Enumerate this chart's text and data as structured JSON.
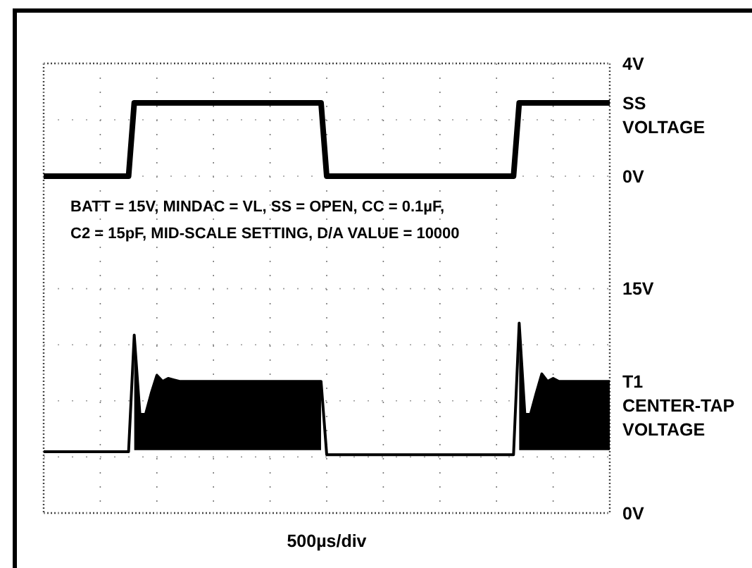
{
  "chart_data": [
    {
      "type": "line",
      "categories": [
        null,
        null,
        null,
        null,
        null,
        null,
        null,
        null,
        null,
        null,
        null,
        null,
        null,
        null,
        null,
        null,
        null,
        null,
        null,
        null,
        null,
        null,
        null,
        null,
        null,
        null,
        null,
        null,
        null,
        null,
        null,
        null,
        null,
        null,
        null,
        null,
        null,
        null,
        null,
        null,
        null,
        null,
        null,
        null,
        null,
        null,
        null,
        null,
        null,
        null,
        null,
        null,
        null,
        null,
        null,
        null,
        null,
        null,
        null,
        null,
        null,
        null,
        null,
        null,
        null,
        null,
        null,
        null,
        null,
        null,
        null,
        null,
        null,
        null,
        null,
        null,
        null,
        null,
        null,
        null,
        null,
        null,
        null,
        null,
        null,
        null,
        null,
        null,
        null,
        null,
        null,
        null,
        null,
        null,
        null,
        null,
        null,
        null,
        null,
        null,
        null
      ],
      "ylim": [
        -2,
        4
      ],
      "yticks": [
        {
          "value": 4,
          "label": "4V"
        },
        {
          "value": 2,
          "label": null
        },
        {
          "value": 0,
          "label": "0V"
        }
      ],
      "grid": true,
      "marker": "none",
      "line_style": "solid",
      "series": [
        {
          "name": "SS VOLTAGE",
          "color": "#000000",
          "values": [
            0,
            0,
            0,
            0,
            0,
            0,
            0,
            0,
            0,
            0,
            0,
            0,
            0,
            0,
            0,
            0,
            2.6,
            2.6,
            2.6,
            2.6,
            2.6,
            2.6,
            2.6,
            2.6,
            2.6,
            2.6,
            2.6,
            2.6,
            2.6,
            2.6,
            2.6,
            2.6,
            2.6,
            2.6,
            2.6,
            2.6,
            2.6,
            2.6,
            2.6,
            2.6,
            2.6,
            2.6,
            2.6,
            2.6,
            2.6,
            2.6,
            2.6,
            2.6,
            2.6,
            2.6,
            0,
            0,
            0,
            0,
            0,
            0,
            0,
            0,
            0,
            0,
            0,
            0,
            0,
            0,
            0,
            0,
            0,
            0,
            0,
            0,
            0,
            0,
            0,
            0,
            0,
            0,
            0,
            0,
            0,
            0,
            0,
            0,
            0,
            0,
            2.6,
            2.6,
            2.6,
            2.6,
            2.6,
            2.6,
            2.6,
            2.6,
            2.6,
            2.6,
            2.6,
            2.6,
            2.6,
            2.6,
            2.6,
            2.6,
            2.6
          ]
        }
      ],
      "annotations": [
        "BATT = 15V, MINDAC = VL, SS = OPEN, CC = 0.1µF,",
        "C2 = 15pF, MID-SCALE SETTING, D/A VALUE = 10000"
      ]
    },
    {
      "type": "line",
      "xlabel": "500µs/div",
      "categories": [
        null,
        null,
        null,
        null,
        null,
        null,
        null,
        null,
        null,
        null,
        null,
        null,
        null,
        null,
        null,
        null,
        null,
        null,
        null,
        null,
        null,
        null,
        null,
        null,
        null,
        null,
        null,
        null,
        null,
        null,
        null,
        null,
        null,
        null,
        null,
        null,
        null,
        null,
        null,
        null,
        null,
        null,
        null,
        null,
        null,
        null,
        null,
        null,
        null,
        null,
        null,
        null,
        null,
        null,
        null,
        null,
        null,
        null,
        null,
        null,
        null,
        null,
        null,
        null,
        null,
        null,
        null,
        null,
        null,
        null,
        null,
        null,
        null,
        null,
        null,
        null,
        null,
        null,
        null,
        null,
        null,
        null,
        null,
        null,
        null,
        null,
        null,
        null,
        null,
        null,
        null,
        null,
        null,
        null,
        null,
        null,
        null,
        null,
        null,
        null,
        null
      ],
      "ylim": [
        0,
        18.75
      ],
      "yticks": [
        {
          "value": 15,
          "label": "15V"
        },
        {
          "value": 11.25,
          "label": null
        },
        {
          "value": 7.5,
          "label": null
        },
        {
          "value": 3.75,
          "label": null
        },
        {
          "value": 0,
          "label": "0V"
        }
      ],
      "grid": true,
      "marker": "none",
      "line_style": "solid",
      "series": [
        {
          "name": "T1 CENTER-TAP VOLTAGE",
          "color": "#000000",
          "values": [
            4.1,
            4.1,
            4.1,
            4.1,
            4.1,
            4.1,
            4.1,
            4.1,
            4.1,
            4.1,
            4.1,
            4.1,
            4.1,
            4.1,
            4.1,
            4.1,
            11.9,
            6.6,
            6.6,
            8.0,
            9.2,
            8.8,
            9.0,
            8.9,
            8.8,
            8.8,
            8.8,
            8.8,
            8.8,
            8.8,
            8.8,
            8.8,
            8.8,
            8.8,
            8.8,
            8.8,
            8.8,
            8.8,
            8.8,
            8.8,
            8.8,
            8.8,
            8.8,
            8.8,
            8.8,
            8.8,
            8.8,
            8.8,
            8.8,
            8.8,
            3.9,
            3.9,
            3.9,
            3.9,
            3.9,
            3.9,
            3.9,
            3.9,
            3.9,
            3.9,
            3.9,
            3.9,
            3.9,
            3.9,
            3.9,
            3.9,
            3.9,
            3.9,
            3.9,
            3.9,
            3.9,
            3.9,
            3.9,
            3.9,
            3.9,
            3.9,
            3.9,
            3.9,
            3.9,
            3.9,
            3.9,
            3.9,
            3.9,
            3.9,
            12.7,
            6.6,
            6.6,
            8.0,
            9.3,
            8.8,
            9.0,
            8.8,
            8.8,
            8.8,
            8.8,
            8.8,
            8.8,
            8.8,
            8.8,
            8.8,
            8.8
          ],
          "lower": [
            null,
            null,
            null,
            null,
            null,
            null,
            null,
            null,
            null,
            null,
            null,
            null,
            null,
            null,
            null,
            null,
            4.2,
            4.2,
            4.2,
            4.2,
            4.2,
            4.2,
            4.2,
            4.2,
            4.2,
            4.2,
            4.2,
            4.2,
            4.2,
            4.2,
            4.2,
            4.2,
            4.2,
            4.2,
            4.2,
            4.2,
            4.2,
            4.2,
            4.2,
            4.2,
            4.2,
            4.2,
            4.2,
            4.2,
            4.2,
            4.2,
            4.2,
            4.2,
            4.2,
            4.2,
            null,
            null,
            null,
            null,
            null,
            null,
            null,
            null,
            null,
            null,
            null,
            null,
            null,
            null,
            null,
            null,
            null,
            null,
            null,
            null,
            null,
            null,
            null,
            null,
            null,
            null,
            null,
            null,
            null,
            null,
            null,
            null,
            null,
            null,
            4.2,
            4.2,
            4.2,
            4.2,
            4.2,
            4.2,
            4.2,
            4.2,
            4.2,
            4.2,
            4.2,
            4.2,
            4.2,
            4.2,
            4.2,
            4.2,
            4.2
          ],
          "upper": [
            null,
            null,
            null,
            null,
            null,
            null,
            null,
            null,
            null,
            null,
            null,
            null,
            null,
            null,
            null,
            null,
            11.9,
            6.6,
            6.6,
            8.0,
            9.2,
            8.8,
            9.0,
            8.9,
            8.8,
            8.8,
            8.8,
            8.8,
            8.8,
            8.8,
            8.8,
            8.8,
            8.8,
            8.8,
            8.8,
            8.8,
            8.8,
            8.8,
            8.8,
            8.8,
            8.8,
            8.8,
            8.8,
            8.8,
            8.8,
            8.8,
            8.8,
            8.8,
            8.8,
            8.8,
            null,
            null,
            null,
            null,
            null,
            null,
            null,
            null,
            null,
            null,
            null,
            null,
            null,
            null,
            null,
            null,
            null,
            null,
            null,
            null,
            null,
            null,
            null,
            null,
            null,
            null,
            null,
            null,
            null,
            null,
            null,
            null,
            null,
            null,
            12.7,
            6.6,
            6.6,
            8.0,
            9.3,
            8.8,
            9.0,
            8.8,
            8.8,
            8.8,
            8.8,
            8.8,
            8.8,
            8.8,
            8.8,
            8.8,
            8.8
          ]
        }
      ]
    }
  ]
}
